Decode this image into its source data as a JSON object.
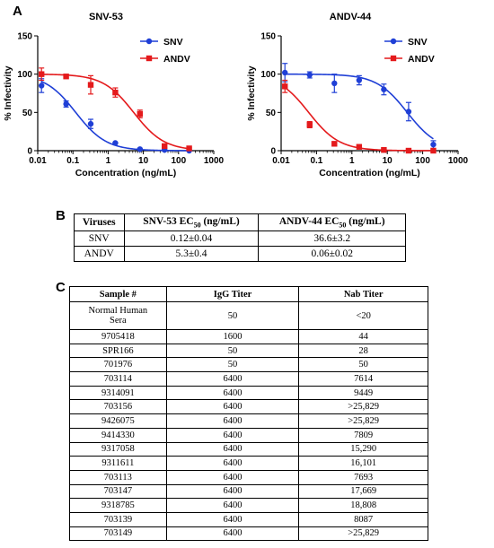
{
  "panels": {
    "a": "A",
    "b": "B",
    "c": "C"
  },
  "chart_data": [
    {
      "type": "scatter",
      "title": "SNV-53",
      "xlabel": "Concentration (ng/mL)",
      "ylabel": "% Infectivity",
      "xscale": "log",
      "xlim": [
        0.01,
        1000
      ],
      "ylim": [
        0,
        150
      ],
      "xticks": [
        "0.01",
        "0.1",
        "1",
        "10",
        "100",
        "1000"
      ],
      "yticks": [
        "0",
        "50",
        "100",
        "150"
      ],
      "legend_position": "top-right",
      "grid": false,
      "series": [
        {
          "name": "SNV",
          "color": "#1f3fd6",
          "marker": "circle",
          "x": [
            0.0128,
            0.064,
            0.32,
            1.6,
            8,
            40,
            200
          ],
          "y": [
            85,
            61,
            35,
            10,
            2,
            1,
            0
          ],
          "err": [
            9,
            4,
            6,
            1,
            1,
            1,
            1
          ],
          "fit_ec50": 0.12,
          "fit_top": 100
        },
        {
          "name": "ANDV",
          "color": "#e41a1c",
          "marker": "square",
          "x": [
            0.0128,
            0.064,
            0.32,
            1.6,
            8,
            40,
            200
          ],
          "y": [
            100,
            97,
            86,
            76,
            48,
            6,
            3
          ],
          "err": [
            8,
            2,
            12,
            6,
            5,
            2,
            1
          ],
          "fit_ec50": 5.3,
          "fit_top": 100
        }
      ]
    },
    {
      "type": "scatter",
      "title": "ANDV-44",
      "xlabel": "Concentration (ng/mL)",
      "ylabel": "% Infectivity",
      "xscale": "log",
      "xlim": [
        0.01,
        1000
      ],
      "ylim": [
        0,
        150
      ],
      "xticks": [
        "0.01",
        "0.1",
        "1",
        "10",
        "100",
        "1000"
      ],
      "yticks": [
        "0",
        "50",
        "100",
        "150"
      ],
      "legend_position": "top-right",
      "grid": false,
      "series": [
        {
          "name": "SNV",
          "color": "#1f3fd6",
          "marker": "circle",
          "x": [
            0.0128,
            0.064,
            0.32,
            1.6,
            8,
            40,
            200
          ],
          "y": [
            102,
            99,
            88,
            92,
            80,
            51,
            8
          ],
          "err": [
            12,
            4,
            12,
            6,
            7,
            12,
            5
          ],
          "fit_ec50": 36.6,
          "fit_top": 100
        },
        {
          "name": "ANDV",
          "color": "#e41a1c",
          "marker": "square",
          "x": [
            0.0128,
            0.064,
            0.32,
            1.6,
            8,
            40,
            200
          ],
          "y": [
            84,
            34,
            9,
            5,
            1,
            0,
            0
          ],
          "err": [
            8,
            4,
            1,
            1,
            1,
            1,
            1
          ],
          "fit_ec50": 0.06,
          "fit_top": 100
        }
      ]
    }
  ],
  "table_b": {
    "headers": [
      "Viruses",
      "SNV-53 EC",
      "ANDV-44 EC"
    ],
    "header_sub": "50",
    "header_unit": " (ng/mL)",
    "rows": [
      [
        "SNV",
        "0.12±0.04",
        "36.6±3.2"
      ],
      [
        "ANDV",
        "5.3±0.4",
        "0.06±0.02"
      ]
    ]
  },
  "table_c": {
    "headers": [
      "Sample #",
      "IgG Titer",
      "Nab Titer"
    ],
    "rows": [
      [
        "Normal Human Sera",
        "50",
        "<20"
      ],
      [
        "9705418",
        "1600",
        "44"
      ],
      [
        "SPR166",
        "50",
        "28"
      ],
      [
        "701976",
        "50",
        "50"
      ],
      [
        "703114",
        "6400",
        "7614"
      ],
      [
        "9314091",
        "6400",
        "9449"
      ],
      [
        "703156",
        "6400",
        ">25,829"
      ],
      [
        "9426075",
        "6400",
        ">25,829"
      ],
      [
        "9414330",
        "6400",
        "7809"
      ],
      [
        "9317058",
        "6400",
        "15,290"
      ],
      [
        "9311611",
        "6400",
        "16,101"
      ],
      [
        "703113",
        "6400",
        "7693"
      ],
      [
        "703147",
        "6400",
        "17,669"
      ],
      [
        "9318785",
        "6400",
        "18,808"
      ],
      [
        "703139",
        "6400",
        "8087"
      ],
      [
        "703149",
        "6400",
        ">25,829"
      ]
    ]
  }
}
